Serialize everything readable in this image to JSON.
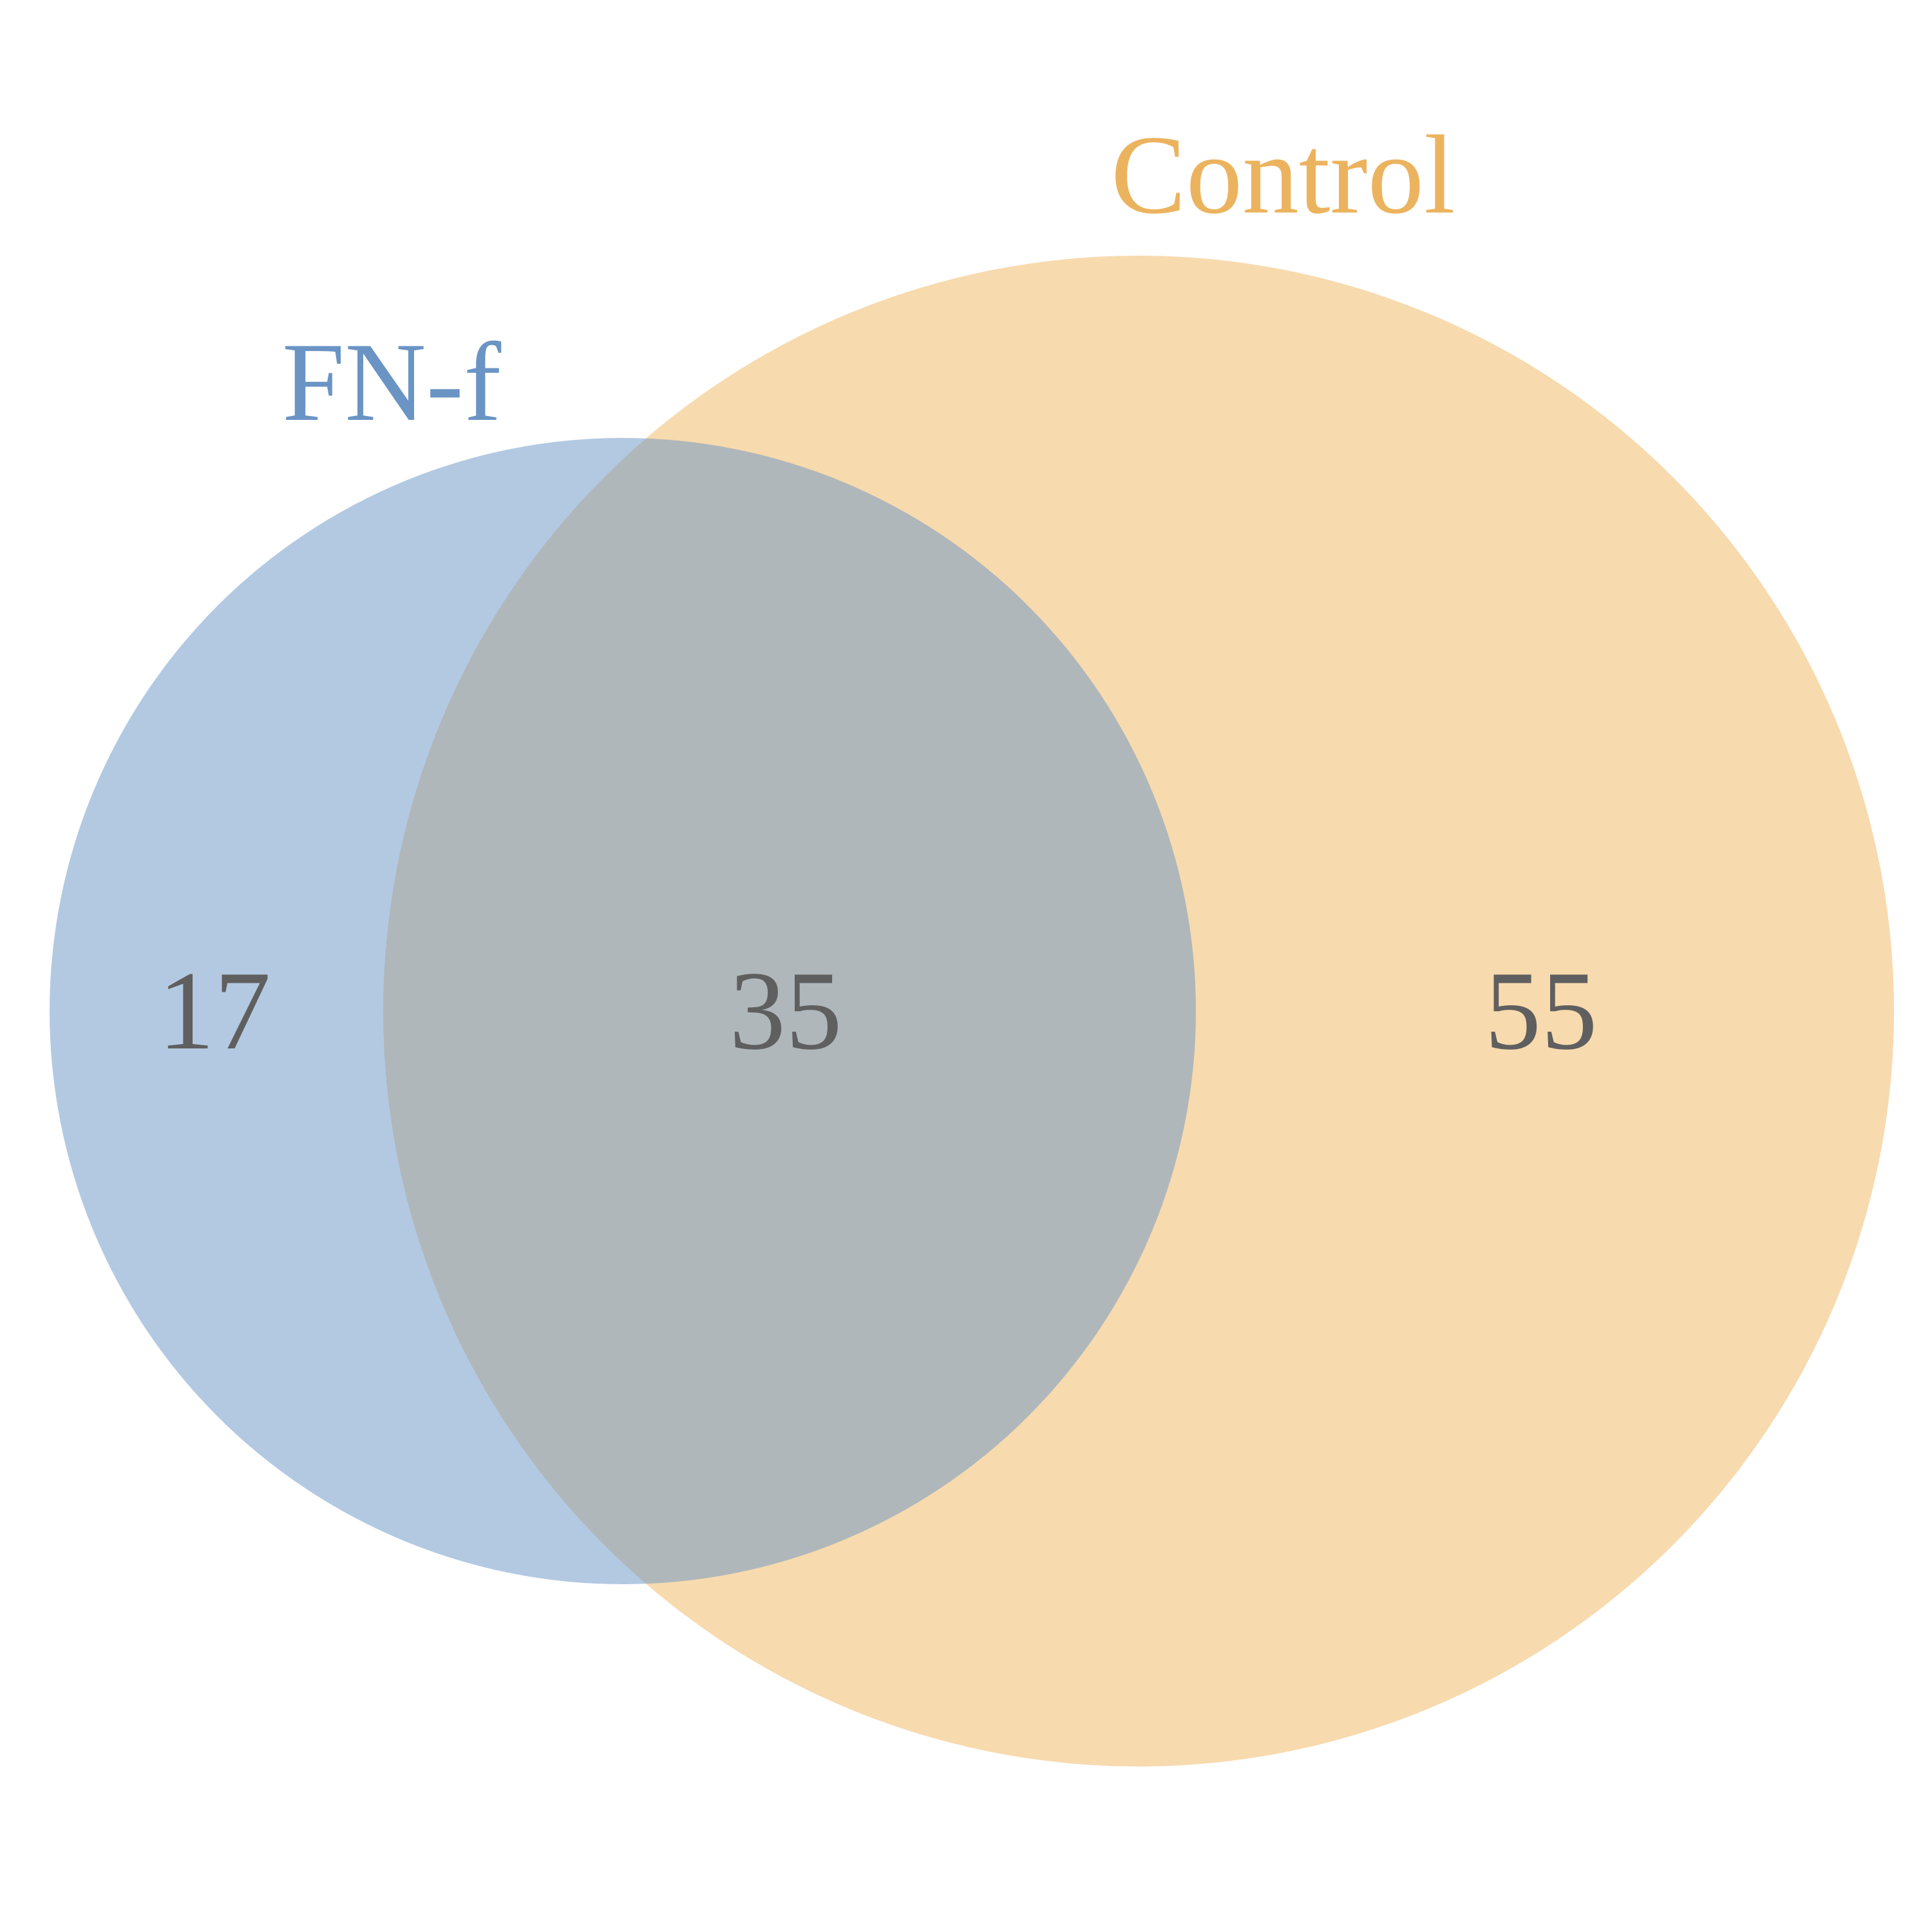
{
  "diagram": {
    "type": "venn",
    "colors": {
      "background": "#ffffff",
      "count_text": "#5f5f5f"
    },
    "sets": [
      {
        "id": "fnf",
        "label": "FN-f",
        "fill": "#6d98c8",
        "fill_opacity": 0.52,
        "label_color": "#6a94c4"
      },
      {
        "id": "control",
        "label": "Control",
        "fill": "#f0b964",
        "fill_opacity": 0.52,
        "label_color": "#ecb35f"
      }
    ],
    "regions": {
      "fnf_only": "17",
      "intersection": "35",
      "control_only": "55"
    }
  }
}
